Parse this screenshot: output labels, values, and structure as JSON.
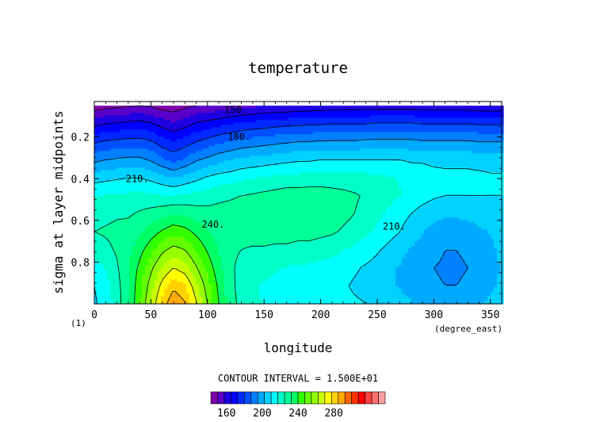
{
  "chart_data": {
    "type": "heatmap",
    "title": "temperature",
    "xlabel": "longitude",
    "xunits": "(degree_east)",
    "ylabel": "sigma at layer midpoints",
    "corner_label": "(1)",
    "xlim": [
      0,
      360
    ],
    "ylim": [
      0.03,
      1.0
    ],
    "y_inverted": true,
    "x_ticks": [
      0,
      50,
      100,
      150,
      200,
      250,
      300,
      350
    ],
    "y_ticks": [
      0.2,
      0.4,
      0.6,
      0.8
    ],
    "y_tick_labels": [
      "0.2",
      "0.4",
      "0.6",
      "0.8"
    ],
    "contour_interval_text": "CONTOUR INTERVAL = 1.500E+01",
    "contour_labels": [
      {
        "text": "150.",
        "lon": 125,
        "sigma": 0.07
      },
      {
        "text": "180.",
        "lon": 128,
        "sigma": 0.2
      },
      {
        "text": "210.",
        "lon": 38,
        "sigma": 0.4
      },
      {
        "text": "240.",
        "lon": 105,
        "sigma": 0.62
      },
      {
        "text": "210.",
        "lon": 265,
        "sigma": 0.63
      }
    ],
    "colorbar": {
      "min": 150,
      "max": 295,
      "step": 7.5,
      "labels": [
        160,
        200,
        240,
        280
      ],
      "colors": [
        "#7f00a8",
        "#5a00c8",
        "#1e00e0",
        "#0000ff",
        "#0028ff",
        "#0050ff",
        "#0080ff",
        "#00aaff",
        "#00d2ff",
        "#00ffff",
        "#00ffc8",
        "#00ff96",
        "#00ff64",
        "#32ff00",
        "#64ff00",
        "#96ff00",
        "#c8ff00",
        "#ffff00",
        "#ffd200",
        "#ffaa00",
        "#ff6400",
        "#ff3200",
        "#ff0000",
        "#ff4040",
        "#ff7070",
        "#ffa0a0"
      ]
    },
    "grid": [
      [
        145,
        147,
        148,
        149,
        150,
        149,
        146,
        145,
        148,
        150,
        151,
        152,
        154,
        155,
        156,
        157,
        158,
        158,
        159,
        159,
        160,
        160,
        160,
        161,
        161,
        161,
        161,
        161,
        161,
        160,
        160,
        160,
        160,
        160,
        159,
        159,
        159
      ],
      [
        163,
        165,
        166,
        167,
        168,
        166,
        162,
        159,
        162,
        166,
        168,
        170,
        172,
        174,
        175,
        176,
        177,
        178,
        178,
        179,
        179,
        180,
        180,
        180,
        180,
        181,
        181,
        181,
        181,
        180,
        180,
        180,
        180,
        180,
        179,
        179,
        179
      ],
      [
        179,
        181,
        182,
        183,
        183,
        181,
        176,
        173,
        176,
        180,
        183,
        186,
        188,
        190,
        191,
        192,
        193,
        194,
        195,
        195,
        196,
        196,
        196,
        196,
        197,
        197,
        197,
        197,
        197,
        196,
        196,
        196,
        196,
        196,
        195,
        195,
        195
      ],
      [
        193,
        195,
        196,
        197,
        197,
        194,
        189,
        185,
        189,
        194,
        197,
        200,
        202,
        204,
        205,
        206,
        207,
        208,
        209,
        209,
        210,
        210,
        210,
        210,
        210,
        210,
        210,
        210,
        209,
        209,
        208,
        208,
        208,
        208,
        207,
        207,
        207
      ],
      [
        207,
        208,
        209,
        210,
        210,
        208,
        205,
        202,
        205,
        208,
        211,
        213,
        214,
        216,
        217,
        218,
        219,
        220,
        220,
        221,
        221,
        221,
        221,
        220,
        220,
        219,
        218,
        217,
        215,
        214,
        213,
        212,
        212,
        212,
        212,
        211,
        211
      ],
      [
        217,
        218,
        219,
        219,
        220,
        219,
        218,
        218,
        219,
        220,
        221,
        223,
        224,
        225,
        226,
        227,
        228,
        229,
        229,
        229,
        229,
        228,
        227,
        226,
        224,
        222,
        220,
        218,
        215,
        213,
        211,
        210,
        210,
        210,
        210,
        210,
        210
      ],
      [
        222,
        223,
        224,
        224,
        226,
        228,
        230,
        232,
        231,
        229,
        228,
        228,
        228,
        229,
        230,
        230,
        231,
        231,
        231,
        231,
        230,
        229,
        227,
        225,
        222,
        219,
        216,
        213,
        210,
        207,
        205,
        204,
        204,
        205,
        206,
        207,
        208
      ],
      [
        225,
        226,
        227,
        228,
        231,
        236,
        241,
        245,
        243,
        238,
        233,
        230,
        229,
        228,
        229,
        229,
        229,
        229,
        228,
        228,
        227,
        226,
        224,
        222,
        219,
        216,
        213,
        210,
        206,
        203,
        200,
        198,
        198,
        199,
        201,
        203,
        205
      ],
      [
        221,
        223,
        226,
        230,
        237,
        245,
        253,
        258,
        255,
        247,
        239,
        232,
        227,
        225,
        224,
        224,
        223,
        223,
        222,
        222,
        221,
        220,
        218,
        216,
        214,
        211,
        208,
        205,
        202,
        199,
        197,
        195,
        195,
        196,
        198,
        201,
        204
      ],
      [
        214,
        218,
        224,
        232,
        242,
        253,
        263,
        270,
        266,
        256,
        245,
        235,
        227,
        222,
        220,
        219,
        218,
        217,
        217,
        216,
        215,
        214,
        213,
        211,
        209,
        207,
        204,
        202,
        199,
        197,
        195,
        194,
        194,
        195,
        197,
        200,
        203
      ],
      [
        210,
        214,
        222,
        232,
        245,
        259,
        273,
        283,
        278,
        265,
        251,
        238,
        228,
        221,
        218,
        217,
        216,
        215,
        214,
        214,
        213,
        212,
        211,
        209,
        208,
        206,
        204,
        202,
        200,
        198,
        196,
        195,
        195,
        196,
        198,
        201,
        204
      ],
      [
        209,
        213,
        221,
        232,
        247,
        263,
        280,
        292,
        286,
        271,
        255,
        240,
        229,
        222,
        219,
        217,
        216,
        215,
        214,
        214,
        213,
        213,
        212,
        211,
        210,
        208,
        207,
        205,
        203,
        201,
        199,
        199,
        199,
        200,
        202,
        204,
        207
      ]
    ]
  }
}
